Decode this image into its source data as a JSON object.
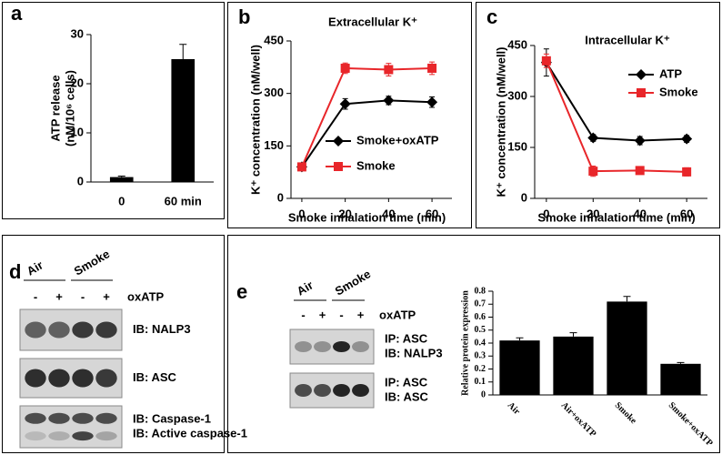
{
  "chart_data": [
    {
      "type": "bar",
      "panel": "a",
      "ylabel": [
        "ATP release",
        "(nM/10⁶ cells)"
      ],
      "categories": [
        "0",
        "60 min"
      ],
      "values": [
        1,
        25
      ],
      "errors": [
        0.2,
        3
      ],
      "color": "#000000",
      "ylim": [
        0,
        30
      ],
      "yticks": [
        0,
        10,
        20,
        30
      ]
    },
    {
      "type": "line",
      "panel": "b",
      "title": "Extracellular K⁺",
      "ylabel": "K⁺ concentration (nM/well)",
      "xlabel": "Smoke inhalation time (min)",
      "x": [
        0,
        20,
        40,
        60
      ],
      "xlim": [
        -5,
        65
      ],
      "xticks": [
        0,
        20,
        40,
        60
      ],
      "ylim": [
        0,
        450
      ],
      "yticks": [
        0,
        150,
        300,
        450
      ],
      "series": [
        {
          "name": "Smoke+oxATP",
          "color": "#000000",
          "marker": "diamond",
          "values": [
            90,
            270,
            280,
            275
          ],
          "errors": [
            10,
            15,
            12,
            15
          ]
        },
        {
          "name": "Smoke",
          "color": "#e8262a",
          "marker": "square",
          "values": [
            90,
            372,
            368,
            372
          ],
          "errors": [
            10,
            15,
            18,
            18
          ]
        }
      ]
    },
    {
      "type": "line",
      "panel": "c",
      "title": "Intracellular K⁺",
      "ylabel": "K⁺ concentration (nM/well)",
      "xlabel": "Smoke inhalation time (min)",
      "x": [
        0,
        20,
        40,
        60
      ],
      "xlim": [
        -5,
        65
      ],
      "xticks": [
        0,
        20,
        40,
        60
      ],
      "ylim": [
        0,
        450
      ],
      "yticks": [
        0,
        150,
        300,
        450
      ],
      "series": [
        {
          "name": "ATP",
          "color": "#000000",
          "marker": "diamond",
          "values": [
            400,
            178,
            170,
            175
          ],
          "errors": [
            40,
            10,
            12,
            10
          ]
        },
        {
          "name": "Smoke",
          "color": "#e8262a",
          "marker": "square",
          "values": [
            405,
            80,
            82,
            78
          ],
          "errors": [
            20,
            15,
            10,
            12
          ]
        }
      ]
    },
    {
      "type": "bar",
      "ylabel": "Relative protein expression",
      "categories": [
        "Air",
        "Air+oxATP",
        "Smoke",
        "Smoke+oxATP"
      ],
      "values": [
        0.42,
        0.45,
        0.72,
        0.24
      ],
      "errors": [
        0.02,
        0.03,
        0.04,
        0.01
      ],
      "color": "#000000",
      "ylim": [
        0,
        0.8
      ],
      "yticks": [
        0,
        0.1,
        0.2,
        0.3,
        0.4,
        0.5,
        0.6,
        0.7,
        0.8
      ]
    }
  ],
  "western_d": {
    "panel": "d",
    "groups": [
      "Air",
      "Smoke"
    ],
    "treatment": "oxATP",
    "signs": [
      "-",
      "+",
      "-",
      "+"
    ],
    "probes": [
      "IB: NALP3",
      "IB: ASC",
      "IB: Caspase-1",
      "IB: Active caspase-1"
    ]
  },
  "western_e": {
    "panel": "e",
    "groups": [
      "Air",
      "Smoke"
    ],
    "treatment": "oxATP",
    "signs": [
      "-",
      "+",
      "-",
      "+"
    ],
    "probes": [
      "IP: ASC",
      "IB: NALP3",
      "IP: ASC",
      "IB: ASC"
    ]
  }
}
